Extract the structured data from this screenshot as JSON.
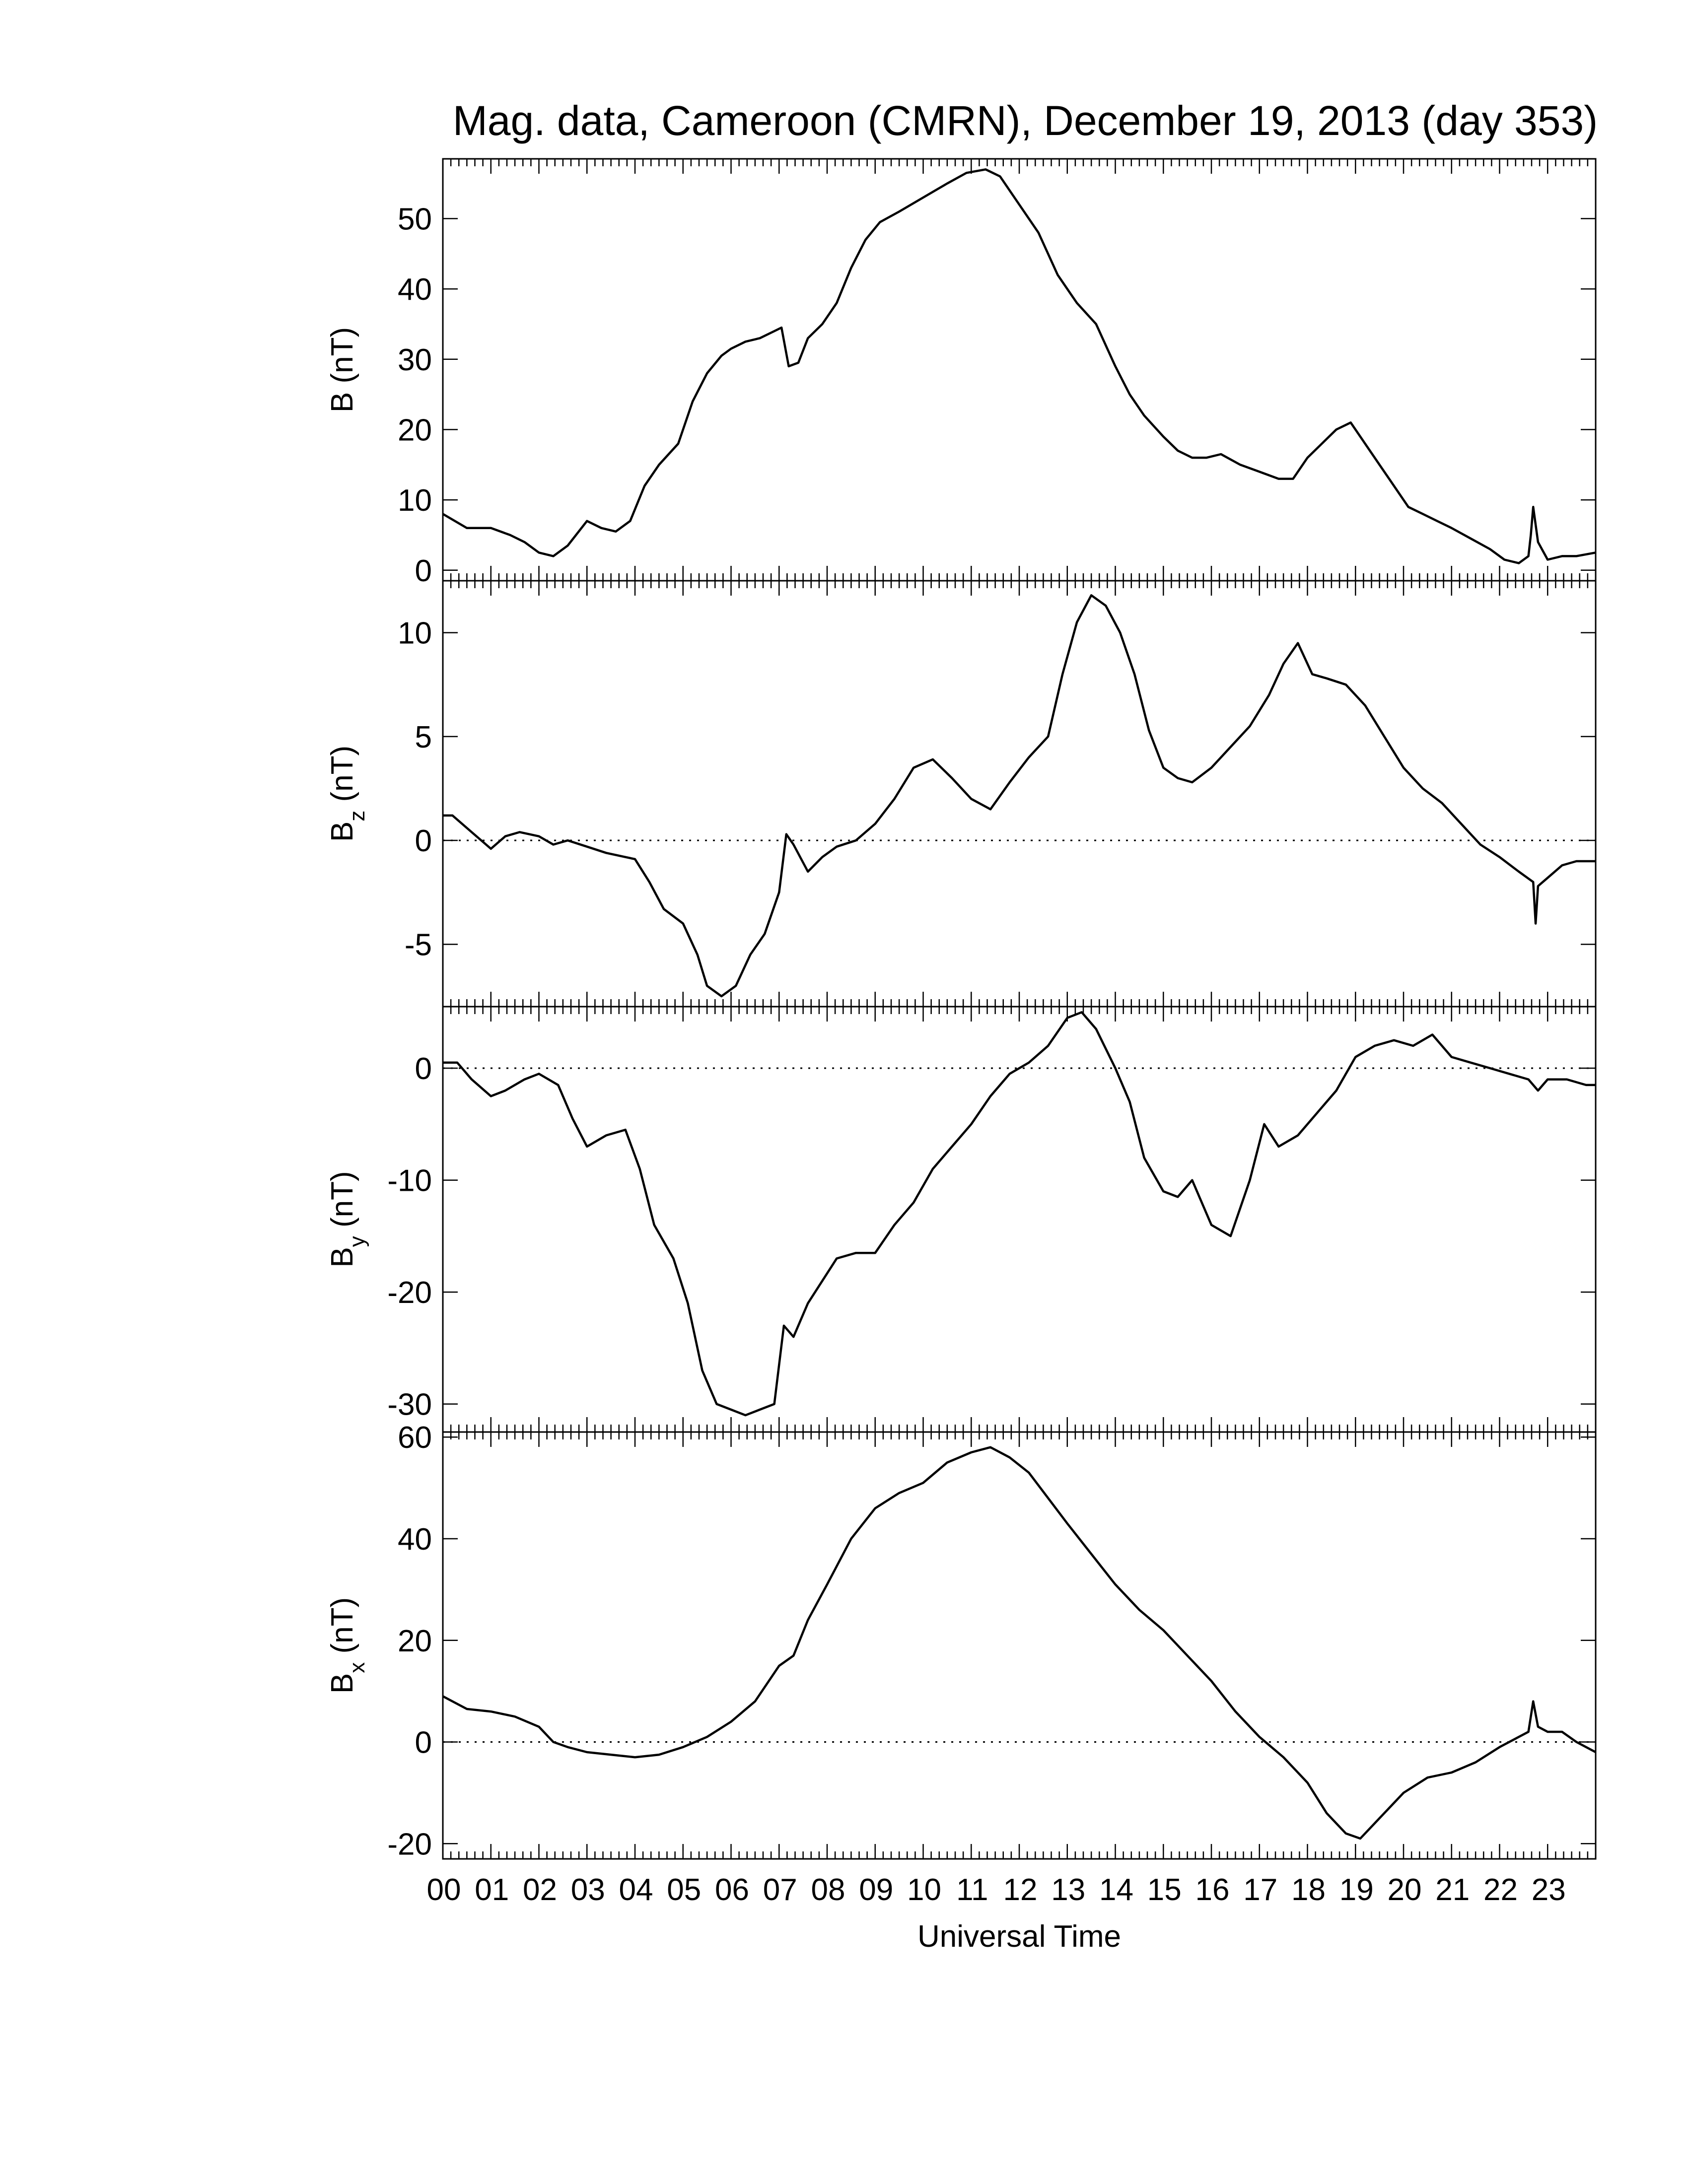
{
  "title": "Mag. data, Cameroon (CMRN), December 19, 2013 (day 353)",
  "xlabel": "Universal Time",
  "colors": {
    "line": "#000000",
    "zero_line": "#000000"
  },
  "chart_data": [
    {
      "type": "line",
      "ylabel_main": "B",
      "ylabel_sub": "",
      "ylabel_unit": " (nT)",
      "ylim": [
        -1.5,
        58.5
      ],
      "yticks": [
        0,
        10,
        20,
        30,
        40,
        50
      ],
      "xlim": [
        0,
        24
      ],
      "xticks": [
        "00",
        "01",
        "02",
        "03",
        "04",
        "05",
        "06",
        "07",
        "08",
        "09",
        "10",
        "11",
        "12",
        "13",
        "14",
        "15",
        "16",
        "17",
        "18",
        "19",
        "20",
        "21",
        "22",
        "23"
      ],
      "zero_line": false,
      "series": [
        {
          "x": [
            0,
            0.5,
            1,
            1.4,
            1.7,
            2,
            2.3,
            2.6,
            3,
            3.3,
            3.6,
            3.9,
            4.2,
            4.5,
            4.9,
            5.2,
            5.5,
            5.8,
            6,
            6.3,
            6.6,
            6.9,
            7.05,
            7.2,
            7.4,
            7.6,
            7.9,
            8.2,
            8.5,
            8.8,
            9.1,
            9.5,
            10,
            10.5,
            10.9,
            11.3,
            11.6,
            12,
            12.4,
            12.8,
            13.2,
            13.6,
            14,
            14.3,
            14.6,
            15,
            15.3,
            15.6,
            15.9,
            16.2,
            16.6,
            17,
            17.4,
            17.7,
            18,
            18.3,
            18.6,
            18.9,
            19.2,
            19.5,
            19.8,
            20.1,
            20.4,
            20.7,
            21,
            21.4,
            21.8,
            22.1,
            22.4,
            22.6,
            22.65,
            22.7,
            22.8,
            23,
            23.3,
            23.6,
            24
          ],
          "y": [
            8,
            6,
            6,
            5,
            4,
            2.5,
            2,
            3.5,
            7,
            6,
            5.5,
            7,
            12,
            15,
            18,
            24,
            28,
            30.5,
            31.5,
            32.5,
            33,
            34,
            34.5,
            29,
            29.5,
            33,
            35,
            38,
            43,
            47,
            49.5,
            51,
            53,
            55,
            56.5,
            57,
            56,
            52,
            48,
            42,
            38,
            35,
            29,
            25,
            22,
            19,
            17,
            16,
            16,
            16.5,
            15,
            14,
            13,
            13,
            16,
            18,
            20,
            21,
            18,
            15,
            12,
            9,
            8,
            7,
            6,
            4.5,
            3,
            1.5,
            1,
            2,
            5,
            9,
            4,
            1.5,
            2,
            2,
            2.5
          ]
        }
      ]
    },
    {
      "type": "line",
      "ylabel_main": "B",
      "ylabel_sub": "z",
      "ylabel_unit": " (nT)",
      "ylim": [
        -8,
        12.5
      ],
      "yticks": [
        -5,
        0,
        5,
        10
      ],
      "xlim": [
        0,
        24
      ],
      "xticks": [
        "00",
        "01",
        "02",
        "03",
        "04",
        "05",
        "06",
        "07",
        "08",
        "09",
        "10",
        "11",
        "12",
        "13",
        "14",
        "15",
        "16",
        "17",
        "18",
        "19",
        "20",
        "21",
        "22",
        "23"
      ],
      "zero_line": true,
      "series": [
        {
          "x": [
            0,
            0.2,
            0.4,
            0.6,
            0.8,
            1,
            1.3,
            1.6,
            2,
            2.3,
            2.6,
            3,
            3.4,
            3.8,
            4,
            4.3,
            4.6,
            5,
            5.3,
            5.5,
            5.8,
            6.1,
            6.4,
            6.7,
            7,
            7.15,
            7.3,
            7.6,
            7.9,
            8.2,
            8.6,
            9,
            9.4,
            9.8,
            10.2,
            10.6,
            11,
            11.4,
            11.8,
            12.2,
            12.6,
            12.9,
            13.2,
            13.5,
            13.8,
            14.1,
            14.4,
            14.7,
            15,
            15.3,
            15.6,
            16,
            16.4,
            16.8,
            17.2,
            17.5,
            17.8,
            18.1,
            18.4,
            18.8,
            19.2,
            19.6,
            20,
            20.4,
            20.8,
            21.2,
            21.6,
            22,
            22.4,
            22.7,
            22.75,
            22.8,
            23,
            23.3,
            23.6,
            24
          ],
          "y": [
            1.2,
            1.2,
            0.8,
            0.4,
            0,
            -0.4,
            0.2,
            0.4,
            0.2,
            -0.2,
            0,
            -0.3,
            -0.6,
            -0.8,
            -0.9,
            -2,
            -3.3,
            -4,
            -5.5,
            -7,
            -7.5,
            -7,
            -5.5,
            -4.5,
            -2.5,
            0.3,
            -0.2,
            -1.5,
            -0.8,
            -0.3,
            0,
            0.8,
            2,
            3.5,
            3.9,
            3,
            2,
            1.5,
            2.8,
            4,
            5,
            8,
            10.5,
            11.8,
            11.3,
            10,
            8,
            5.3,
            3.5,
            3,
            2.8,
            3.5,
            4.5,
            5.5,
            7,
            8.5,
            9.5,
            8,
            7.8,
            7.5,
            6.5,
            5,
            3.5,
            2.5,
            1.8,
            0.8,
            -0.2,
            -0.8,
            -1.5,
            -2,
            -4,
            -2.2,
            -1.8,
            -1.2,
            -1,
            -1
          ]
        }
      ]
    },
    {
      "type": "line",
      "ylabel_main": "B",
      "ylabel_sub": "y",
      "ylabel_unit": " (nT)",
      "ylim": [
        -32.5,
        5.5
      ],
      "yticks": [
        -30,
        -20,
        -10,
        0
      ],
      "xlim": [
        0,
        24
      ],
      "xticks": [
        "00",
        "01",
        "02",
        "03",
        "04",
        "05",
        "06",
        "07",
        "08",
        "09",
        "10",
        "11",
        "12",
        "13",
        "14",
        "15",
        "16",
        "17",
        "18",
        "19",
        "20",
        "21",
        "22",
        "23"
      ],
      "zero_line": true,
      "series": [
        {
          "x": [
            0,
            0.3,
            0.6,
            1,
            1.3,
            1.7,
            2,
            2.4,
            2.7,
            3,
            3.4,
            3.8,
            4.1,
            4.4,
            4.8,
            5.1,
            5.4,
            5.7,
            6,
            6.3,
            6.6,
            6.9,
            7.1,
            7.3,
            7.6,
            7.9,
            8.2,
            8.6,
            9,
            9.4,
            9.8,
            10.2,
            10.6,
            11,
            11.4,
            11.8,
            12.2,
            12.6,
            13,
            13.3,
            13.6,
            14,
            14.3,
            14.6,
            15,
            15.3,
            15.6,
            16,
            16.4,
            16.8,
            17.1,
            17.4,
            17.8,
            18.2,
            18.6,
            19,
            19.4,
            19.8,
            20.2,
            20.6,
            21,
            21.4,
            21.8,
            22.2,
            22.6,
            22.8,
            23,
            23.4,
            23.8,
            24
          ],
          "y": [
            0.5,
            0.5,
            -1,
            -2.5,
            -2,
            -1,
            -0.5,
            -1.5,
            -4.5,
            -7,
            -6,
            -5.5,
            -9,
            -14,
            -17,
            -21,
            -27,
            -30,
            -30.5,
            -31,
            -30.5,
            -30,
            -23,
            -24,
            -21,
            -19,
            -17,
            -16.5,
            -16.5,
            -14,
            -12,
            -9,
            -7,
            -5,
            -2.5,
            -0.5,
            0.5,
            2,
            4.5,
            5,
            3.5,
            0,
            -3,
            -8,
            -11,
            -11.5,
            -10,
            -14,
            -15,
            -10,
            -5,
            -7,
            -6,
            -4,
            -2,
            1,
            2,
            2.5,
            2,
            3,
            1,
            0.5,
            0,
            -0.5,
            -1,
            -2,
            -1,
            -1,
            -1.5,
            -1.5
          ]
        }
      ]
    },
    {
      "type": "line",
      "ylabel_main": "B",
      "ylabel_sub": "x",
      "ylabel_unit": " (nT)",
      "ylim": [
        -23,
        61
      ],
      "yticks": [
        -20,
        0,
        20,
        40,
        60
      ],
      "xlim": [
        0,
        24
      ],
      "xticks": [
        "00",
        "01",
        "02",
        "03",
        "04",
        "05",
        "06",
        "07",
        "08",
        "09",
        "10",
        "11",
        "12",
        "13",
        "14",
        "15",
        "16",
        "17",
        "18",
        "19",
        "20",
        "21",
        "22",
        "23"
      ],
      "zero_line": true,
      "series": [
        {
          "x": [
            0,
            0.5,
            1,
            1.5,
            2,
            2.3,
            2.6,
            3,
            3.5,
            4,
            4.5,
            5,
            5.5,
            6,
            6.5,
            7,
            7.3,
            7.6,
            8,
            8.5,
            9,
            9.5,
            10,
            10.5,
            11,
            11.4,
            11.8,
            12.2,
            12.6,
            13,
            13.5,
            14,
            14.5,
            15,
            15.5,
            16,
            16.5,
            17,
            17.5,
            18,
            18.4,
            18.8,
            19.1,
            19.5,
            20,
            20.5,
            21,
            21.5,
            22,
            22.4,
            22.6,
            22.7,
            22.8,
            23,
            23.3,
            23.6,
            24
          ],
          "y": [
            9,
            6.5,
            6,
            5,
            3,
            0,
            -1,
            -2,
            -2.5,
            -3,
            -2.5,
            -1,
            1,
            4,
            8,
            15,
            17,
            24,
            31,
            40,
            46,
            49,
            51,
            55,
            57,
            58,
            56,
            53,
            48,
            43,
            37,
            31,
            26,
            22,
            17,
            12,
            6,
            1,
            -3,
            -8,
            -14,
            -18,
            -19,
            -15,
            -10,
            -7,
            -6,
            -4,
            -1,
            1,
            2,
            8,
            3,
            2,
            2,
            0,
            -2
          ]
        }
      ]
    }
  ]
}
